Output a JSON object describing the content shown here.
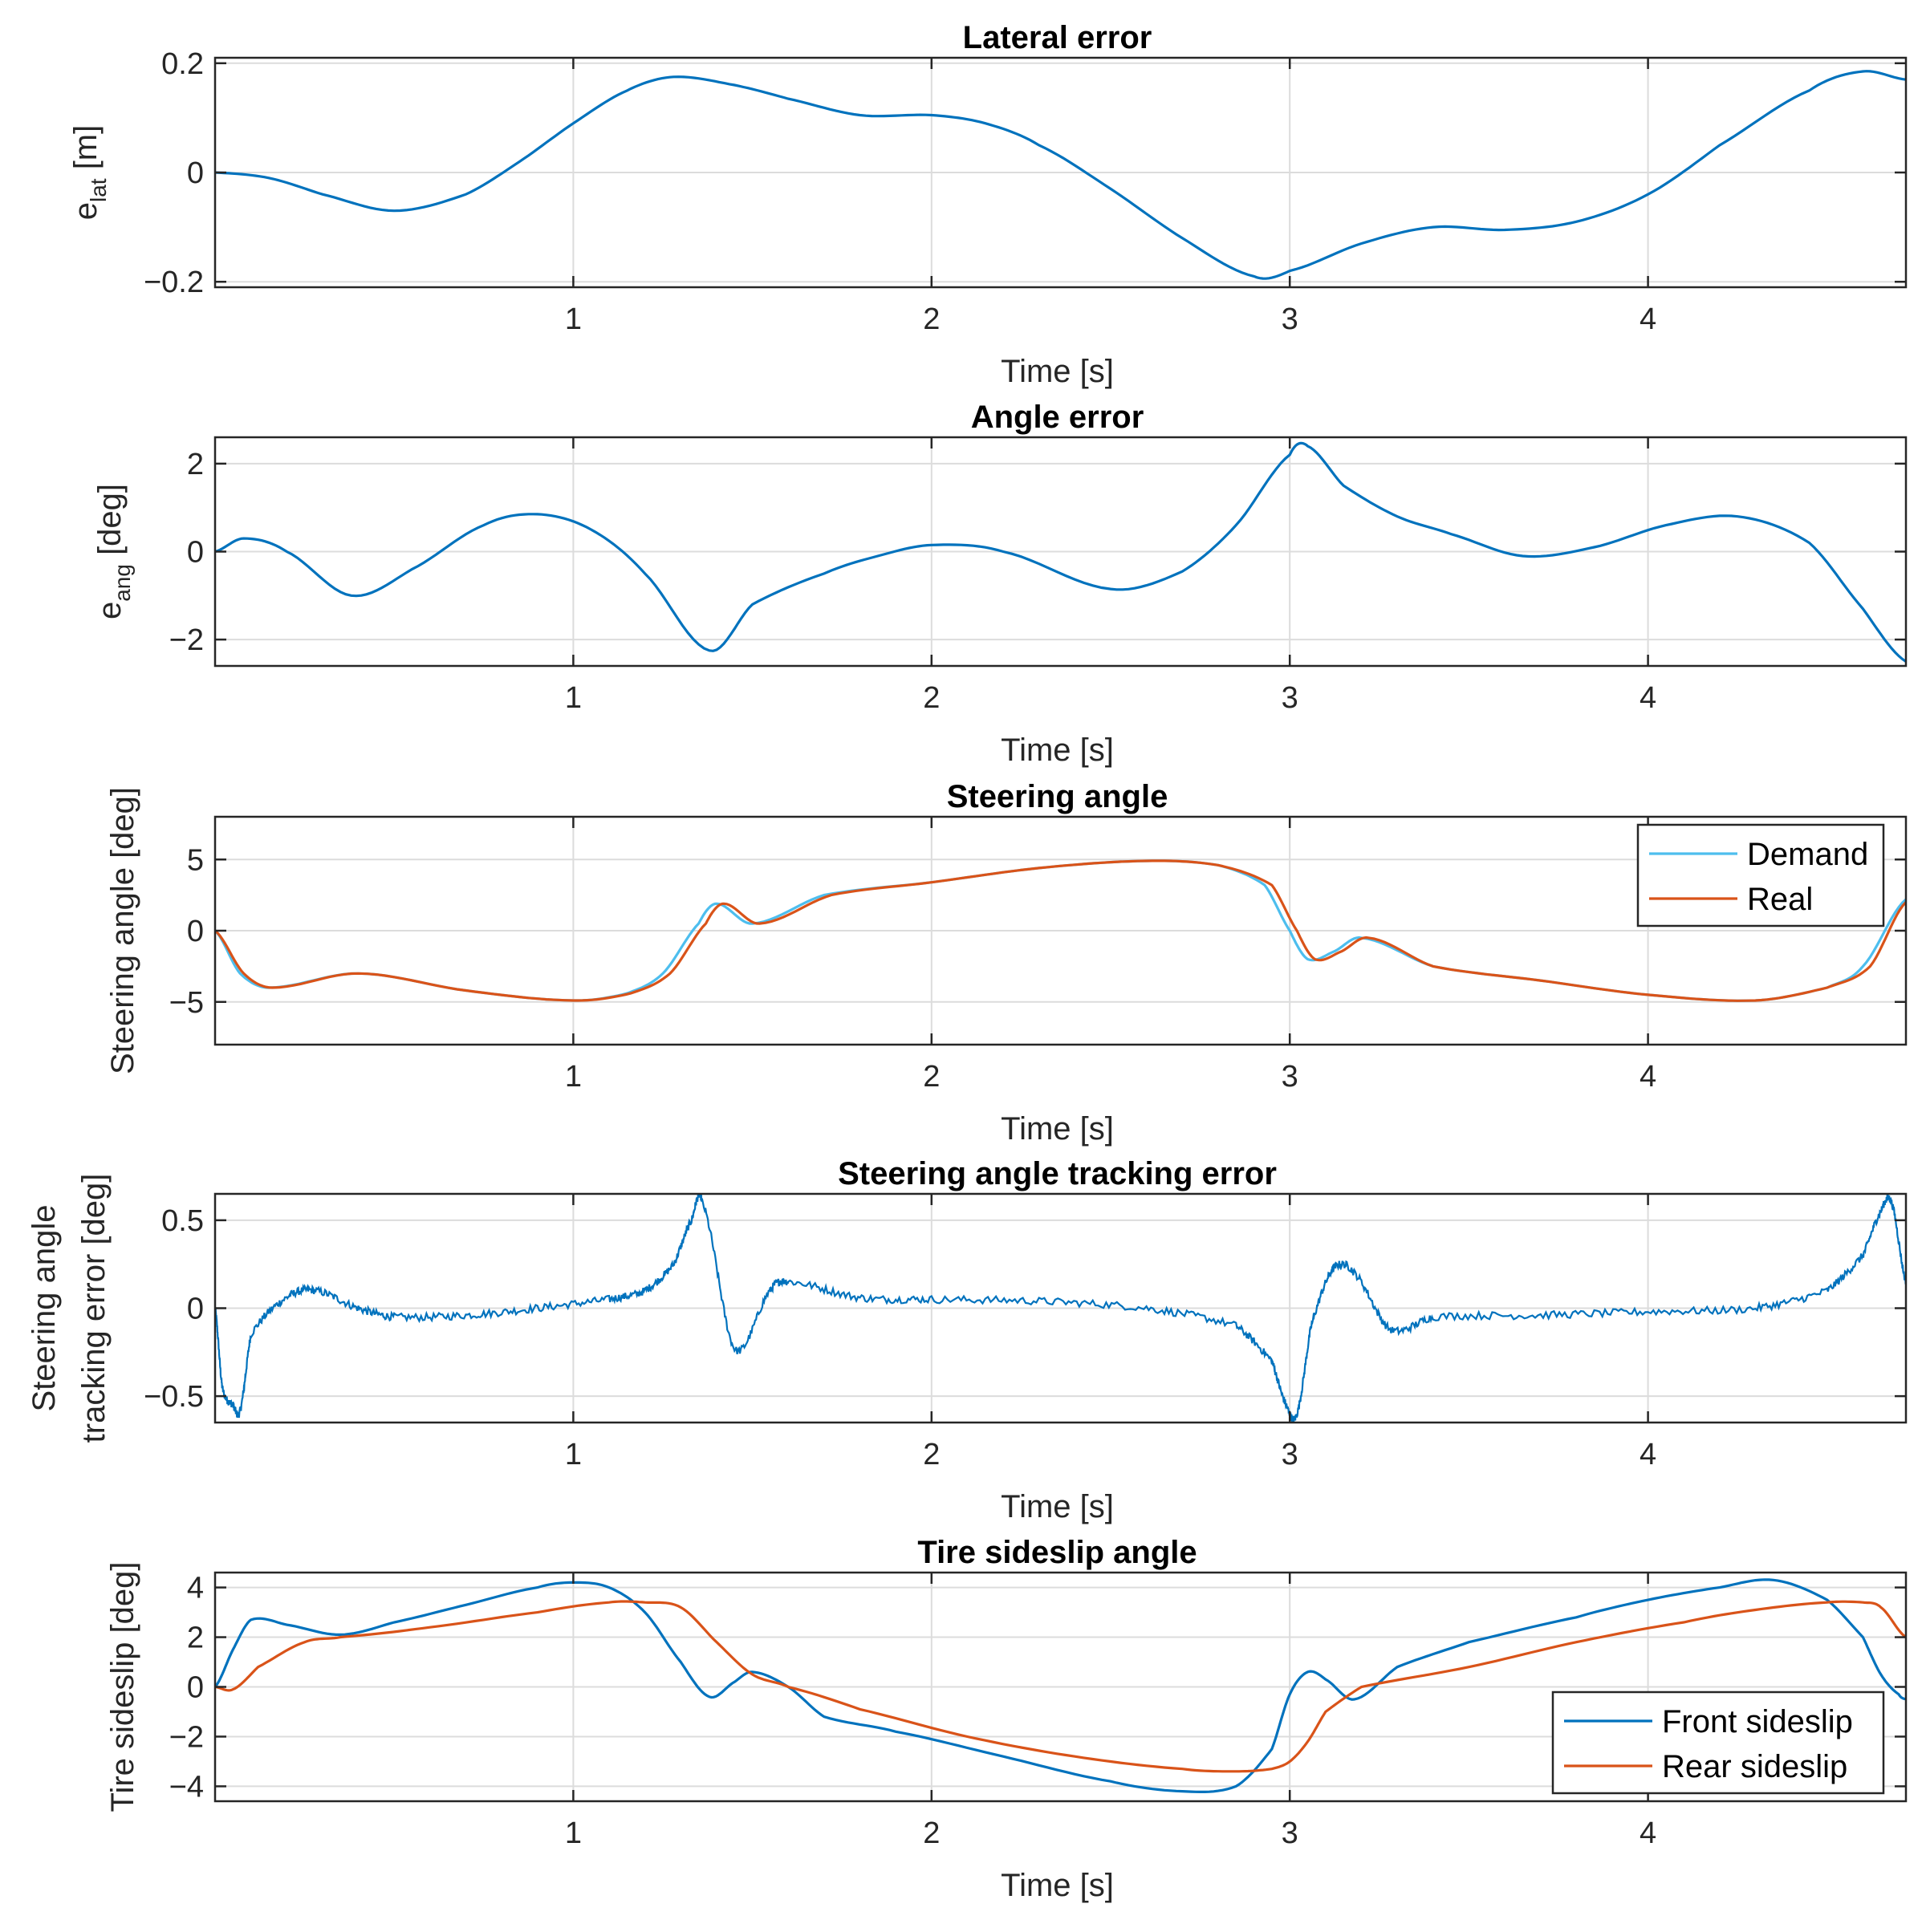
{
  "colors": {
    "blue": "#0072BD",
    "orange": "#D95319",
    "grid": "#dcdcdc",
    "axis": "#262626"
  },
  "chart_data": [
    {
      "type": "line",
      "title": "Lateral error",
      "xlabel": "Time [s]",
      "ylabel": "e",
      "ylabel_sub": "lat",
      "ylabel_unit": " [m]",
      "xlim": [
        0,
        4.72
      ],
      "ylim": [
        -0.21,
        0.21
      ],
      "xticks": [
        1,
        2,
        3,
        4
      ],
      "xtick_labels": [
        "1",
        "2",
        "3",
        "4"
      ],
      "yticks": [
        -0.2,
        0,
        0.2
      ],
      "ytick_labels": [
        "−0.2",
        "0",
        "0.2"
      ],
      "legend": null,
      "series": [
        {
          "name": "e_lat",
          "color": "#0072BD",
          "x": [
            0,
            0.15,
            0.3,
            0.5,
            0.7,
            0.85,
            1.0,
            1.15,
            1.28,
            1.45,
            1.6,
            1.8,
            2.0,
            2.15,
            2.3,
            2.5,
            2.7,
            2.9,
            3.0,
            3.2,
            3.4,
            3.6,
            3.8,
            4.0,
            4.2,
            4.45,
            4.6,
            4.72
          ],
          "y": [
            0.0,
            -0.01,
            -0.04,
            -0.07,
            -0.04,
            0.02,
            0.09,
            0.15,
            0.175,
            0.16,
            0.135,
            0.105,
            0.105,
            0.09,
            0.05,
            -0.03,
            -0.12,
            -0.19,
            -0.18,
            -0.13,
            -0.1,
            -0.105,
            -0.09,
            -0.04,
            0.05,
            0.15,
            0.185,
            0.17
          ]
        }
      ]
    },
    {
      "type": "line",
      "title": "Angle error",
      "xlabel": "Time [s]",
      "ylabel": "e",
      "ylabel_sub": "ang",
      "ylabel_unit": " [deg]",
      "xlim": [
        0,
        4.72
      ],
      "ylim": [
        -2.6,
        2.6
      ],
      "xticks": [
        1,
        2,
        3,
        4
      ],
      "xtick_labels": [
        "1",
        "2",
        "3",
        "4"
      ],
      "yticks": [
        -2,
        0,
        2
      ],
      "ytick_labels": [
        "−2",
        "0",
        "2"
      ],
      "legend": null,
      "series": [
        {
          "name": "e_ang",
          "color": "#0072BD",
          "x": [
            0,
            0.08,
            0.2,
            0.38,
            0.55,
            0.75,
            0.9,
            1.05,
            1.2,
            1.38,
            1.5,
            1.7,
            1.85,
            2.0,
            2.2,
            2.5,
            2.7,
            2.85,
            3.0,
            3.05,
            3.15,
            3.3,
            3.45,
            3.65,
            3.85,
            4.05,
            4.25,
            4.45,
            4.6,
            4.72
          ],
          "y": [
            0,
            0.3,
            0.0,
            -1.0,
            -0.4,
            0.6,
            0.85,
            0.5,
            -0.5,
            -2.25,
            -1.2,
            -0.5,
            -0.1,
            0.15,
            0.0,
            -0.85,
            -0.45,
            0.6,
            2.2,
            2.4,
            1.5,
            0.8,
            0.4,
            -0.1,
            0.1,
            0.6,
            0.8,
            0.2,
            -1.3,
            -2.5
          ]
        }
      ]
    },
    {
      "type": "line",
      "title": "Steering angle",
      "xlabel": "Time [s]",
      "ylabel": "Steering angle [deg]",
      "xlim": [
        0,
        4.72
      ],
      "ylim": [
        -8,
        8
      ],
      "xticks": [
        1,
        2,
        3,
        4
      ],
      "xtick_labels": [
        "1",
        "2",
        "3",
        "4"
      ],
      "yticks": [
        -5,
        0,
        5
      ],
      "ytick_labels": [
        "−5",
        "0",
        "5"
      ],
      "legend": {
        "position": "top-right",
        "entries": [
          "Demand",
          "Real"
        ]
      },
      "series": [
        {
          "name": "Demand",
          "color": "#4DBEEE",
          "x": [
            0,
            0.07,
            0.15,
            0.4,
            0.7,
            1.0,
            1.15,
            1.25,
            1.35,
            1.4,
            1.5,
            1.7,
            2.0,
            2.3,
            2.6,
            2.8,
            2.93,
            3.0,
            3.05,
            3.12,
            3.2,
            3.4,
            3.7,
            4.0,
            4.3,
            4.5,
            4.6,
            4.72
          ],
          "y": [
            0,
            -3.0,
            -4.0,
            -3.0,
            -4.2,
            -4.9,
            -4.4,
            -3.0,
            0.5,
            1.9,
            0.5,
            2.5,
            3.4,
            4.4,
            4.9,
            4.6,
            3.2,
            0.0,
            -2.0,
            -1.5,
            -0.5,
            -2.5,
            -3.5,
            -4.5,
            -4.9,
            -4.0,
            -2.5,
            2.2
          ]
        },
        {
          "name": "Real",
          "color": "#D95319",
          "x": [
            0,
            0.08,
            0.16,
            0.4,
            0.7,
            1.0,
            1.16,
            1.27,
            1.37,
            1.42,
            1.52,
            1.72,
            2.0,
            2.3,
            2.6,
            2.8,
            2.95,
            3.02,
            3.07,
            3.14,
            3.22,
            3.4,
            3.7,
            4.0,
            4.3,
            4.5,
            4.62,
            4.72
          ],
          "y": [
            0,
            -3.0,
            -4.0,
            -3.0,
            -4.2,
            -4.9,
            -4.4,
            -3.0,
            0.5,
            1.9,
            0.5,
            2.5,
            3.4,
            4.4,
            4.9,
            4.6,
            3.2,
            0.0,
            -2.0,
            -1.5,
            -0.5,
            -2.5,
            -3.5,
            -4.5,
            -4.9,
            -4.0,
            -2.5,
            2.0
          ]
        }
      ]
    },
    {
      "type": "line",
      "title": "Steering angle tracking error",
      "xlabel": "Time [s]",
      "ylabel": "Steering angle",
      "ylabel_line2": "tracking error [deg]",
      "xlim": [
        0,
        4.72
      ],
      "ylim": [
        -0.65,
        0.65
      ],
      "xticks": [
        1,
        2,
        3,
        4
      ],
      "xtick_labels": [
        "1",
        "2",
        "3",
        "4"
      ],
      "yticks": [
        -0.5,
        0,
        0.5
      ],
      "ytick_labels": [
        "−0.5",
        "0",
        "0.5"
      ],
      "legend": null,
      "series": [
        {
          "name": "tracking error",
          "color": "#0072BD",
          "noise": 0.022,
          "x": [
            0,
            0.02,
            0.05,
            0.07,
            0.1,
            0.2,
            0.28,
            0.4,
            0.5,
            0.7,
            0.9,
            1.1,
            1.2,
            1.28,
            1.33,
            1.36,
            1.45,
            1.55,
            1.6,
            1.8,
            2.0,
            2.3,
            2.6,
            2.85,
            2.95,
            2.99,
            3.02,
            3.06,
            3.12,
            3.18,
            3.28,
            3.4,
            3.7,
            4.0,
            4.3,
            4.5,
            4.6,
            4.65,
            4.68,
            4.72
          ],
          "y": [
            0,
            -0.45,
            -0.55,
            -0.58,
            -0.15,
            0.06,
            0.1,
            0.0,
            -0.05,
            -0.04,
            0.0,
            0.05,
            0.1,
            0.25,
            0.5,
            0.6,
            -0.23,
            0.1,
            0.15,
            0.06,
            0.05,
            0.04,
            0.0,
            -0.1,
            -0.3,
            -0.55,
            -0.6,
            -0.1,
            0.22,
            0.2,
            -0.12,
            -0.05,
            -0.04,
            -0.02,
            0.0,
            0.1,
            0.3,
            0.55,
            0.6,
            0.15
          ]
        }
      ]
    },
    {
      "type": "line",
      "title": "Tire sideslip angle",
      "xlabel": "Time [s]",
      "ylabel": "Tire sideslip [deg]",
      "xlim": [
        0,
        4.72
      ],
      "ylim": [
        -4.6,
        4.6
      ],
      "xticks": [
        1,
        2,
        3,
        4
      ],
      "xtick_labels": [
        "1",
        "2",
        "3",
        "4"
      ],
      "yticks": [
        -4,
        -2,
        0,
        2,
        4
      ],
      "ytick_labels": [
        "−4",
        "−2",
        "0",
        "2",
        "4"
      ],
      "legend": {
        "position": "bottom-right",
        "entries": [
          "Front sideslip",
          "Rear sideslip"
        ]
      },
      "series": [
        {
          "name": "Front sideslip",
          "color": "#0072BD",
          "x": [
            0,
            0.05,
            0.1,
            0.2,
            0.35,
            0.5,
            0.7,
            0.9,
            1.0,
            1.1,
            1.2,
            1.3,
            1.38,
            1.45,
            1.5,
            1.6,
            1.7,
            1.9,
            2.2,
            2.5,
            2.7,
            2.85,
            2.95,
            3.0,
            3.05,
            3.1,
            3.18,
            3.3,
            3.5,
            3.8,
            4.0,
            4.2,
            4.35,
            4.5,
            4.6,
            4.65,
            4.7,
            4.72
          ],
          "y": [
            0,
            1.5,
            2.7,
            2.5,
            2.1,
            2.6,
            3.3,
            4.0,
            4.2,
            4.0,
            3.0,
            1.0,
            -0.4,
            0.2,
            0.6,
            0.0,
            -1.2,
            -1.8,
            -2.8,
            -3.8,
            -4.2,
            -4.0,
            -2.5,
            -0.3,
            0.6,
            0.3,
            -0.5,
            0.8,
            1.8,
            2.8,
            3.5,
            4.0,
            4.3,
            3.5,
            2.0,
            0.5,
            -0.3,
            -0.5
          ]
        },
        {
          "name": "Rear sideslip",
          "color": "#D95319",
          "x": [
            0,
            0.05,
            0.12,
            0.25,
            0.35,
            0.6,
            0.9,
            1.1,
            1.2,
            1.3,
            1.4,
            1.5,
            1.6,
            1.8,
            2.1,
            2.4,
            2.7,
            2.85,
            2.95,
            3.0,
            3.05,
            3.1,
            3.2,
            3.5,
            3.8,
            4.1,
            4.3,
            4.5,
            4.6,
            4.65,
            4.72
          ],
          "y": [
            0,
            -0.1,
            0.8,
            1.8,
            2.0,
            2.4,
            3.0,
            3.4,
            3.4,
            3.2,
            1.8,
            0.5,
            0.0,
            -0.9,
            -2.0,
            -2.8,
            -3.3,
            -3.4,
            -3.3,
            -3.0,
            -2.2,
            -1.0,
            0.0,
            0.8,
            1.8,
            2.6,
            3.1,
            3.4,
            3.4,
            3.2,
            2.0
          ]
        }
      ]
    }
  ]
}
